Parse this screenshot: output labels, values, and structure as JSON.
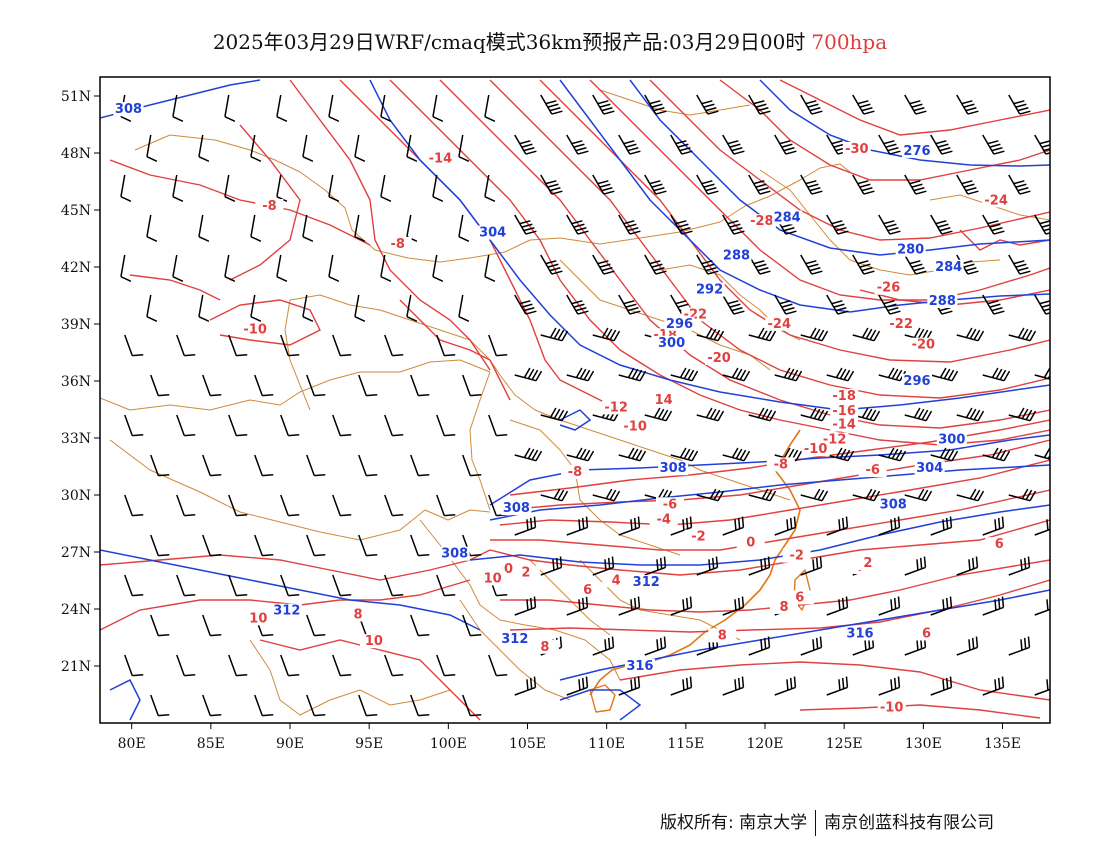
{
  "title": {
    "main": "2025年03月29日WRF/cmaq模式36km预报产品:03月29日00时",
    "level": "700hpa"
  },
  "axes": {
    "lon_labels": [
      "80E",
      "85E",
      "90E",
      "95E",
      "100E",
      "105E",
      "110E",
      "115E",
      "120E",
      "125E",
      "130E",
      "135E"
    ],
    "lon_values": [
      80,
      85,
      90,
      95,
      100,
      105,
      110,
      115,
      120,
      125,
      130,
      135
    ],
    "lat_labels": [
      "51N",
      "48N",
      "45N",
      "42N",
      "39N",
      "36N",
      "33N",
      "30N",
      "27N",
      "24N",
      "21N"
    ],
    "lat_values": [
      51,
      48,
      45,
      42,
      39,
      36,
      33,
      30,
      27,
      24,
      21
    ],
    "lon_range": [
      78,
      138
    ],
    "lat_range": [
      18,
      52
    ]
  },
  "temperature_contour_labels": [
    {
      "text": "-14",
      "lon": 99.5,
      "lat": 47.5
    },
    {
      "text": "-8",
      "lon": 88.7,
      "lat": 45.0
    },
    {
      "text": "-8",
      "lon": 96.8,
      "lat": 43.0
    },
    {
      "text": "-10",
      "lon": 87.8,
      "lat": 38.5
    },
    {
      "text": "-30",
      "lon": 125.8,
      "lat": 48.0
    },
    {
      "text": "-28",
      "lon": 119.8,
      "lat": 44.2
    },
    {
      "text": "-24",
      "lon": 134.6,
      "lat": 45.3
    },
    {
      "text": "-26",
      "lon": 127.8,
      "lat": 40.7
    },
    {
      "text": "-22",
      "lon": 115.6,
      "lat": 39.3
    },
    {
      "text": "-24",
      "lon": 120.9,
      "lat": 38.8
    },
    {
      "text": "-22",
      "lon": 128.6,
      "lat": 38.8
    },
    {
      "text": "-18",
      "lon": 113.7,
      "lat": 38.2
    },
    {
      "text": "-20",
      "lon": 117.1,
      "lat": 37.0
    },
    {
      "text": "-20",
      "lon": 130.0,
      "lat": 37.7
    },
    {
      "text": "-12",
      "lon": 110.6,
      "lat": 34.4
    },
    {
      "text": "14",
      "lon": 113.6,
      "lat": 34.8
    },
    {
      "text": "-10",
      "lon": 111.8,
      "lat": 33.4
    },
    {
      "text": "-18",
      "lon": 125.0,
      "lat": 35.0
    },
    {
      "text": "-16",
      "lon": 125.0,
      "lat": 34.2
    },
    {
      "text": "-14",
      "lon": 125.0,
      "lat": 33.5
    },
    {
      "text": "-12",
      "lon": 124.4,
      "lat": 32.7
    },
    {
      "text": "-10",
      "lon": 123.2,
      "lat": 32.2
    },
    {
      "text": "-8",
      "lon": 121.0,
      "lat": 31.4
    },
    {
      "text": "-6",
      "lon": 126.8,
      "lat": 31.1
    },
    {
      "text": "-8",
      "lon": 108.0,
      "lat": 31.0
    },
    {
      "text": "-6",
      "lon": 114.0,
      "lat": 29.3
    },
    {
      "text": "-4",
      "lon": 113.6,
      "lat": 28.5
    },
    {
      "text": "-2",
      "lon": 115.8,
      "lat": 27.6
    },
    {
      "text": "0",
      "lon": 119.1,
      "lat": 27.3
    },
    {
      "text": "-2",
      "lon": 122.0,
      "lat": 26.6
    },
    {
      "text": "2",
      "lon": 128.7,
      "lat": 29.2
    },
    {
      "text": "6",
      "lon": 134.8,
      "lat": 27.2
    },
    {
      "text": "4",
      "lon": 125.9,
      "lat": 26.0
    },
    {
      "text": "2",
      "lon": 126.5,
      "lat": 26.2
    },
    {
      "text": "2",
      "lon": 104.9,
      "lat": 25.7
    },
    {
      "text": "0",
      "lon": 103.8,
      "lat": 25.9
    },
    {
      "text": "10",
      "lon": 102.8,
      "lat": 25.4
    },
    {
      "text": "4",
      "lon": 110.6,
      "lat": 25.3
    },
    {
      "text": "6",
      "lon": 108.8,
      "lat": 24.8
    },
    {
      "text": "6",
      "lon": 122.2,
      "lat": 24.4
    },
    {
      "text": "8",
      "lon": 121.2,
      "lat": 23.9
    },
    {
      "text": "8",
      "lon": 117.3,
      "lat": 22.4
    },
    {
      "text": "6",
      "lon": 130.2,
      "lat": 22.5
    },
    {
      "text": "8",
      "lon": 106.1,
      "lat": 21.8
    },
    {
      "text": "10",
      "lon": 88.0,
      "lat": 23.3
    },
    {
      "text": "8",
      "lon": 94.3,
      "lat": 23.5
    },
    {
      "text": "10",
      "lon": 95.3,
      "lat": 22.1
    },
    {
      "text": "-10",
      "lon": 128.0,
      "lat": 18.6
    }
  ],
  "height_contour_labels": [
    {
      "text": "308",
      "lon": 79.8,
      "lat": 50.1
    },
    {
      "text": "276",
      "lon": 129.6,
      "lat": 47.9
    },
    {
      "text": "284",
      "lon": 121.4,
      "lat": 44.4
    },
    {
      "text": "288",
      "lon": 118.2,
      "lat": 42.4
    },
    {
      "text": "280",
      "lon": 129.2,
      "lat": 42.7
    },
    {
      "text": "284",
      "lon": 131.6,
      "lat": 41.8
    },
    {
      "text": "288",
      "lon": 131.2,
      "lat": 40.0
    },
    {
      "text": "292",
      "lon": 116.5,
      "lat": 40.6
    },
    {
      "text": "296",
      "lon": 114.6,
      "lat": 38.8
    },
    {
      "text": "300",
      "lon": 114.1,
      "lat": 37.8
    },
    {
      "text": "304",
      "lon": 102.8,
      "lat": 43.6
    },
    {
      "text": "296",
      "lon": 129.6,
      "lat": 35.8
    },
    {
      "text": "300",
      "lon": 131.8,
      "lat": 32.7
    },
    {
      "text": "308",
      "lon": 114.2,
      "lat": 31.2
    },
    {
      "text": "304",
      "lon": 130.4,
      "lat": 31.2
    },
    {
      "text": "308",
      "lon": 104.3,
      "lat": 29.1
    },
    {
      "text": "308",
      "lon": 128.1,
      "lat": 29.3
    },
    {
      "text": "308",
      "lon": 100.4,
      "lat": 26.7
    },
    {
      "text": "312",
      "lon": 112.5,
      "lat": 25.2
    },
    {
      "text": "312",
      "lon": 104.2,
      "lat": 22.2
    },
    {
      "text": "316",
      "lon": 112.1,
      "lat": 20.8
    },
    {
      "text": "316",
      "lon": 126.0,
      "lat": 22.5
    },
    {
      "text": "312",
      "lon": 89.8,
      "lat": 23.7
    }
  ],
  "colors": {
    "temperature": "#e04040",
    "height": "#2040d8",
    "boundary": "#d08a3a",
    "coastline": "#e07818",
    "barb": "#000000",
    "level_text": "#e03c3c"
  },
  "footer": {
    "left": "版权所有: 南京大学",
    "right": "南京创蓝科技有限公司"
  }
}
